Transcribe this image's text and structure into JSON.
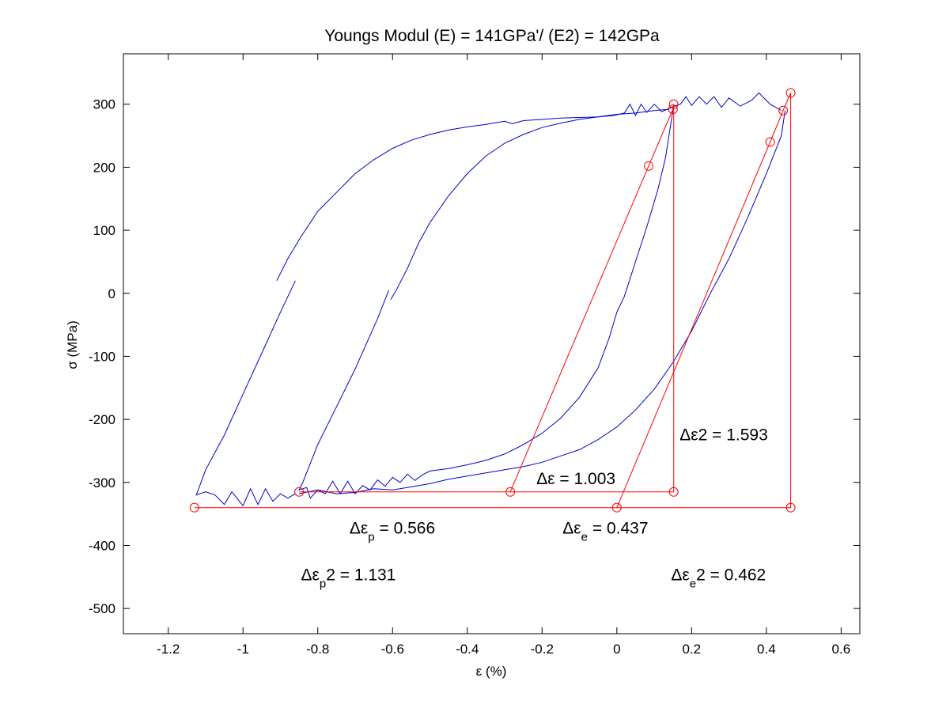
{
  "chart_data": {
    "type": "line",
    "title": "Youngs Modul (E) = 141GPa'/ (E2) = 142GPa",
    "xlabel": "ε (%)",
    "ylabel": "σ (MPa)",
    "xlim": [
      -1.32,
      0.65
    ],
    "ylim": [
      -540,
      380
    ],
    "xticks": [
      -1.2,
      -1,
      -0.8,
      -0.6,
      -0.4,
      -0.2,
      0,
      0.2,
      0.4,
      0.6
    ],
    "xtick_labels": [
      "-1.2",
      "-1",
      "-0.8",
      "-0.6",
      "-0.4",
      "-0.2",
      "0",
      "0.2",
      "0.4",
      "0.6"
    ],
    "yticks": [
      300,
      200,
      100,
      0,
      -100,
      -200,
      -300,
      -400,
      -500
    ],
    "ytick_labels": [
      "300",
      "200",
      "100",
      "0",
      "-100",
      "-200",
      "-300",
      "-400",
      "-500"
    ],
    "grid": false,
    "series": [
      {
        "color": "#0000cc",
        "points": [
          [
            -0.91,
            20
          ],
          [
            -0.88,
            55
          ],
          [
            -0.845,
            90
          ],
          [
            -0.8,
            130
          ],
          [
            -0.75,
            160
          ],
          [
            -0.7,
            190
          ],
          [
            -0.65,
            212
          ],
          [
            -0.6,
            230
          ],
          [
            -0.55,
            243
          ],
          [
            -0.5,
            252
          ],
          [
            -0.45,
            259
          ],
          [
            -0.4,
            264
          ],
          [
            -0.35,
            268
          ],
          [
            -0.32,
            271
          ],
          [
            -0.3,
            273
          ],
          [
            -0.28,
            269
          ],
          [
            -0.25,
            274
          ],
          [
            -0.2,
            276
          ],
          [
            -0.15,
            278
          ],
          [
            -0.1,
            279
          ],
          [
            -0.05,
            280
          ],
          [
            -0.01,
            282
          ],
          [
            0.02,
            286
          ],
          [
            0.035,
            300
          ],
          [
            0.05,
            282
          ],
          [
            0.065,
            300
          ],
          [
            0.08,
            287
          ],
          [
            0.1,
            300
          ],
          [
            0.12,
            288
          ],
          [
            0.15,
            296
          ],
          [
            0.17,
            300
          ],
          [
            0.185,
            312
          ],
          [
            0.2,
            298
          ],
          [
            0.22,
            312
          ],
          [
            0.24,
            300
          ],
          [
            0.26,
            312
          ],
          [
            0.28,
            295
          ],
          [
            0.3,
            310
          ],
          [
            0.33,
            297
          ],
          [
            0.36,
            306
          ],
          [
            0.38,
            318
          ],
          [
            0.41,
            300
          ],
          [
            0.44,
            290
          ]
        ]
      },
      {
        "color": "#0000cc",
        "points": [
          [
            -0.86,
            20
          ],
          [
            -0.9,
            -30
          ],
          [
            -0.95,
            -95
          ],
          [
            -1.0,
            -160
          ],
          [
            -1.05,
            -225
          ],
          [
            -1.1,
            -280
          ],
          [
            -1.125,
            -320
          ],
          [
            -1.1,
            -315
          ],
          [
            -1.075,
            -320
          ],
          [
            -1.05,
            -335
          ],
          [
            -1.03,
            -315
          ],
          [
            -1.0,
            -337
          ],
          [
            -0.98,
            -310
          ],
          [
            -0.96,
            -335
          ],
          [
            -0.94,
            -310
          ],
          [
            -0.92,
            -330
          ],
          [
            -0.9,
            -318
          ],
          [
            -0.88,
            -325
          ],
          [
            -0.86,
            -318
          ]
        ]
      },
      {
        "color": "#0000cc",
        "points": [
          [
            -0.605,
            -10
          ],
          [
            -0.59,
            5
          ],
          [
            -0.56,
            40
          ],
          [
            -0.53,
            80
          ],
          [
            -0.5,
            112
          ],
          [
            -0.45,
            155
          ],
          [
            -0.4,
            190
          ],
          [
            -0.35,
            218
          ],
          [
            -0.3,
            238
          ],
          [
            -0.25,
            252
          ],
          [
            -0.2,
            263
          ],
          [
            -0.15,
            270
          ],
          [
            -0.1,
            276
          ],
          [
            -0.05,
            280
          ],
          [
            0,
            284
          ],
          [
            0.05,
            286
          ],
          [
            0.1,
            290
          ],
          [
            0.14,
            292
          ]
        ]
      },
      {
        "color": "#0000cc",
        "points": [
          [
            -0.61,
            5
          ],
          [
            -0.64,
            -40
          ],
          [
            -0.7,
            -120
          ],
          [
            -0.75,
            -180
          ],
          [
            -0.8,
            -240
          ],
          [
            -0.84,
            -300
          ],
          [
            -0.85,
            -312
          ],
          [
            -0.83,
            -308
          ],
          [
            -0.82,
            -325
          ],
          [
            -0.8,
            -312
          ],
          [
            -0.78,
            -318
          ],
          [
            -0.76,
            -298
          ],
          [
            -0.74,
            -318
          ],
          [
            -0.72,
            -298
          ],
          [
            -0.7,
            -318
          ],
          [
            -0.68,
            -305
          ],
          [
            -0.66,
            -312
          ],
          [
            -0.64,
            -296
          ],
          [
            -0.62,
            -306
          ],
          [
            -0.6,
            -292
          ],
          [
            -0.58,
            -300
          ],
          [
            -0.56,
            -287
          ],
          [
            -0.54,
            -297
          ],
          [
            -0.52,
            -288
          ],
          [
            -0.5,
            -282
          ],
          [
            -0.45,
            -278
          ],
          [
            -0.4,
            -272
          ],
          [
            -0.35,
            -265
          ],
          [
            -0.3,
            -255
          ],
          [
            -0.25,
            -240
          ],
          [
            -0.2,
            -222
          ],
          [
            -0.15,
            -198
          ],
          [
            -0.1,
            -165
          ],
          [
            -0.05,
            -118
          ],
          [
            -0.02,
            -70
          ],
          [
            0,
            -30
          ],
          [
            0.02,
            -5
          ],
          [
            0.05,
            50
          ],
          [
            0.08,
            105
          ],
          [
            0.11,
            165
          ],
          [
            0.13,
            215
          ],
          [
            0.15,
            290
          ]
        ]
      },
      {
        "color": "#0000cc",
        "points": [
          [
            -0.85,
            -318
          ],
          [
            -0.8,
            -312
          ],
          [
            -0.75,
            -318
          ],
          [
            -0.7,
            -316
          ],
          [
            -0.65,
            -310
          ],
          [
            -0.6,
            -312
          ],
          [
            -0.55,
            -307
          ],
          [
            -0.5,
            -302
          ],
          [
            -0.45,
            -295
          ],
          [
            -0.4,
            -290
          ],
          [
            -0.35,
            -285
          ],
          [
            -0.3,
            -280
          ],
          [
            -0.25,
            -275
          ],
          [
            -0.2,
            -268
          ],
          [
            -0.15,
            -258
          ],
          [
            -0.1,
            -248
          ],
          [
            -0.05,
            -232
          ],
          [
            0,
            -212
          ],
          [
            0.05,
            -185
          ],
          [
            0.1,
            -152
          ],
          [
            0.15,
            -110
          ],
          [
            0.2,
            -60
          ],
          [
            0.25,
            0
          ],
          [
            0.3,
            55
          ],
          [
            0.35,
            120
          ],
          [
            0.4,
            190
          ],
          [
            0.44,
            250
          ],
          [
            0.45,
            290
          ]
        ]
      },
      {
        "color": "#ff0000",
        "points": [
          [
            -1.13,
            -340
          ],
          [
            0.465,
            -340
          ],
          [
            0.465,
            318
          ],
          [
            0.445,
            290
          ],
          [
            0.41,
            240
          ],
          [
            0,
            -340
          ]
        ]
      },
      {
        "color": "#ff0000",
        "points": [
          [
            -0.85,
            -315
          ],
          [
            0.152,
            -315
          ],
          [
            0.152,
            300
          ],
          [
            0.15,
            292
          ],
          [
            0.085,
            202
          ],
          [
            -0.285,
            -315
          ]
        ]
      }
    ],
    "markers": {
      "color": "#ff0000",
      "points": [
        [
          -1.13,
          -340
        ],
        [
          0,
          -340
        ],
        [
          0.465,
          -340
        ],
        [
          0.465,
          318
        ],
        [
          0.445,
          290
        ],
        [
          0.41,
          240
        ],
        [
          -0.85,
          -315
        ],
        [
          -0.285,
          -315
        ],
        [
          0.152,
          -315
        ],
        [
          0.152,
          300
        ],
        [
          0.15,
          292
        ],
        [
          0.085,
          202
        ]
      ]
    },
    "annotations": [
      {
        "x": -0.215,
        "y": -303,
        "parts": [
          {
            "t": "Δε = 1.003"
          }
        ]
      },
      {
        "x": 0.168,
        "y": -233,
        "parts": [
          {
            "t": "Δε2 = 1.593"
          }
        ]
      },
      {
        "x": -0.715,
        "y": -381,
        "parts": [
          {
            "t": "Δε"
          },
          {
            "t": "p",
            "sub": true
          },
          {
            "t": " = 0.566"
          }
        ]
      },
      {
        "x": -0.145,
        "y": -381,
        "parts": [
          {
            "t": "Δε"
          },
          {
            "t": "e",
            "sub": true
          },
          {
            "t": " = 0.437"
          }
        ]
      },
      {
        "x": -0.845,
        "y": -455,
        "parts": [
          {
            "t": "Δε"
          },
          {
            "t": "p",
            "sub": true
          },
          {
            "t": "2 = 1.131"
          }
        ]
      },
      {
        "x": 0.145,
        "y": -455,
        "parts": [
          {
            "t": "Δε"
          },
          {
            "t": "e",
            "sub": true
          },
          {
            "t": "2 = 0.462"
          }
        ]
      }
    ]
  }
}
